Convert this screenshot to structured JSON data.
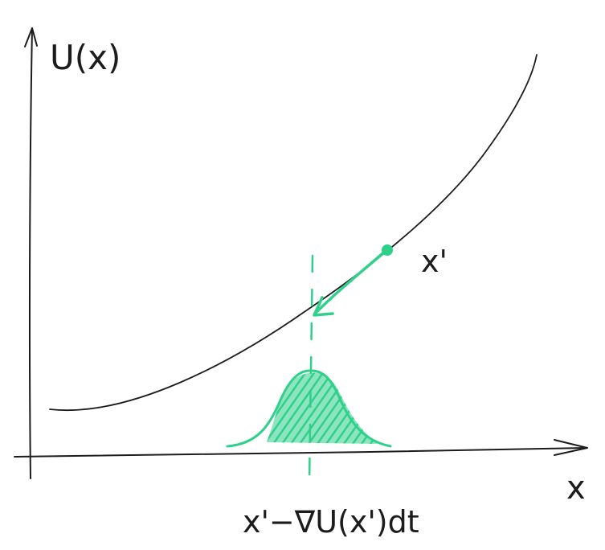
{
  "diagram": {
    "y_axis_label": "U(x)",
    "x_axis_label": "x",
    "point_label": "x'",
    "update_label": "x'−∇U(x')dt"
  },
  "colors": {
    "ink": "#1c1c1c",
    "accent": "#2fd08a"
  }
}
